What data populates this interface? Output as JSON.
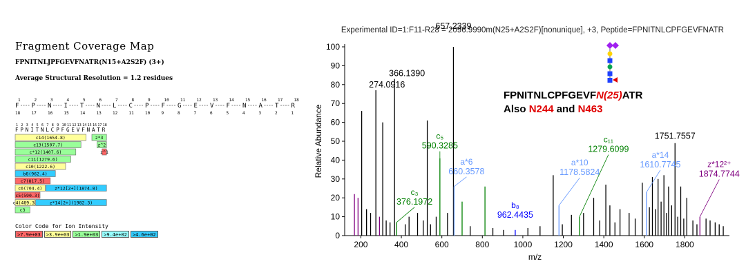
{
  "fragment_map": {
    "title": "Fragment Coverage Map",
    "peptide_line": "FPNITNLJPFGEVFNATR(N15+A2S2F) (3+)",
    "resolution_line": "Average Structural Resolution = 1.2 residues",
    "residues": [
      "F",
      "P",
      "N",
      "I",
      "T",
      "N",
      "L",
      "C",
      "P",
      "F",
      "G",
      "E",
      "V",
      "F",
      "N",
      "A",
      "T",
      "R"
    ],
    "numbers_top": [
      "1",
      "2",
      "3",
      "4",
      "5",
      "6",
      "7",
      "8",
      "9",
      "10",
      "11",
      "12",
      "13",
      "14",
      "15",
      "16",
      "17",
      "18"
    ],
    "numbers_bottom": [
      "18",
      "17",
      "16",
      "15",
      "14",
      "13",
      "12",
      "11",
      "10",
      "9",
      "8",
      "7",
      "6",
      "5",
      "4",
      "3",
      "2",
      "1"
    ],
    "ion_bars": [
      {
        "label": "c14(1654.8)",
        "start": 1,
        "end": 14,
        "row": 0,
        "color": "#ffff99"
      },
      {
        "label": "c13(1507.7)",
        "start": 1,
        "end": 13,
        "row": 1,
        "color": "#99ff99"
      },
      {
        "label": "c*12(1407.6)",
        "start": 1,
        "end": 12,
        "row": 2,
        "color": "#99ff99"
      },
      {
        "label": "c11(1279.6)",
        "start": 1,
        "end": 11,
        "row": 3,
        "color": "#99ff99"
      },
      {
        "label": "c10(1222.6)",
        "start": 1,
        "end": 10,
        "row": 4,
        "color": "#ffff99"
      },
      {
        "label": "b8(962.4)",
        "start": 1,
        "end": 8,
        "row": 5,
        "color": "#33ccff"
      },
      {
        "label": "c7(817.5)",
        "start": 1,
        "end": 7,
        "row": 6,
        "color": "#ff6666"
      },
      {
        "label": "c6(704.4)",
        "start": 1,
        "end": 6,
        "row": 7,
        "color": "#ffff99"
      },
      {
        "label": "c5(590.3)",
        "start": 1,
        "end": 5,
        "row": 8,
        "color": "#ff6666"
      },
      {
        "label": "c4(489.3)",
        "start": 1,
        "end": 4,
        "row": 9,
        "color": "#ffff99"
      },
      {
        "label": "c3",
        "start": 1,
        "end": 3,
        "row": 10,
        "color": "#99ff99"
      },
      {
        "label": "z*3",
        "start": 16,
        "end": 18,
        "row": 0,
        "color": "#99ff99"
      },
      {
        "label": "z^2",
        "start": 17,
        "end": 18,
        "row": 1,
        "color": "#99ff99"
      },
      {
        "label": "z^1",
        "start": 18,
        "end": 18,
        "row": 2,
        "color": "#ff6666"
      },
      {
        "label": "z*12[2+](1874.8)",
        "start": 7,
        "end": 18,
        "row": 7,
        "color": "#33ccff"
      },
      {
        "label": "z*14[2+](1982.3)",
        "start": 5,
        "end": 18,
        "row": 9,
        "color": "#33ccff"
      }
    ],
    "color_code_title": "Color Code for Ion Intensity",
    "color_code": [
      {
        "label": ">7.9e+03",
        "color": "#ff6666"
      },
      {
        "label": ">3.9e+03",
        "color": "#ffff99"
      },
      {
        "label": ">1.9e+03",
        "color": "#99ff99"
      },
      {
        "label": ">9.4e+02",
        "color": "#99ffff"
      },
      {
        "label": ">4.6e+02",
        "color": "#33ccff"
      }
    ]
  },
  "annotation": {
    "seq_prefix": "FPNITNLCPFGEVF",
    "seq_mod": "N(25)",
    "seq_suffix": "ATR",
    "also_prefix": "Also ",
    "also_n1": "N244",
    "also_mid": " and ",
    "also_n2": "N463"
  },
  "chart_data": {
    "type": "bar",
    "title": "Experimental ID=1:F11-R28 = 2096.9990m(N25+A2S2F)[nonunique], +3, Peptide=FPNITNLCPFGEVFNATR",
    "xlabel": "m/z",
    "ylabel": "Relative Abundance",
    "xlim": [
      120,
      2000
    ],
    "ylim": [
      0,
      100
    ],
    "xticks": [
      200,
      400,
      600,
      800,
      1000,
      1200,
      1400,
      1600,
      1800
    ],
    "yticks": [
      0,
      10,
      20,
      30,
      40,
      50,
      60,
      70,
      80,
      90,
      100
    ],
    "peaks": [
      {
        "mz": 657.2339,
        "intensity": 100,
        "color": "#000000"
      },
      {
        "mz": 366.139,
        "intensity": 83,
        "color": "#000000"
      },
      {
        "mz": 274.0916,
        "intensity": 77,
        "color": "#000000"
      },
      {
        "mz": 204.0,
        "intensity": 66,
        "color": "#000000"
      },
      {
        "mz": 308.0,
        "intensity": 60,
        "color": "#000000"
      },
      {
        "mz": 528.0,
        "intensity": 61,
        "color": "#000000"
      },
      {
        "mz": 590.3285,
        "intensity": 41,
        "color": "#008000"
      },
      {
        "mz": 376.1972,
        "intensity": 7,
        "color": "#008000"
      },
      {
        "mz": 660.3578,
        "intensity": 26,
        "color": "#6699ff"
      },
      {
        "mz": 813.0,
        "intensity": 26,
        "color": "#008000"
      },
      {
        "mz": 962.4435,
        "intensity": 3,
        "color": "#0000ff"
      },
      {
        "mz": 1178.5824,
        "intensity": 16,
        "color": "#6699ff"
      },
      {
        "mz": 1279.6099,
        "intensity": 10,
        "color": "#008000"
      },
      {
        "mz": 1610.7745,
        "intensity": 23,
        "color": "#6699ff"
      },
      {
        "mz": 1751.7557,
        "intensity": 49,
        "color": "#000000"
      },
      {
        "mz": 1874.7744,
        "intensity": 10,
        "color": "#800080"
      },
      {
        "mz": 1697.0,
        "intensity": 32,
        "color": "#000000"
      },
      {
        "mz": 1640.0,
        "intensity": 31,
        "color": "#000000"
      },
      {
        "mz": 1668.0,
        "intensity": 30,
        "color": "#000000"
      },
      {
        "mz": 1150.0,
        "intensity": 32,
        "color": "#000000"
      },
      {
        "mz": 1410.0,
        "intensity": 27,
        "color": "#000000"
      },
      {
        "mz": 1590.0,
        "intensity": 28,
        "color": "#000000"
      },
      {
        "mz": 1720.0,
        "intensity": 26,
        "color": "#000000"
      },
      {
        "mz": 1780.0,
        "intensity": 26,
        "color": "#000000"
      },
      {
        "mz": 1810.0,
        "intensity": 20,
        "color": "#000000"
      },
      {
        "mz": 1350.0,
        "intensity": 20,
        "color": "#000000"
      },
      {
        "mz": 1430.0,
        "intensity": 16,
        "color": "#000000"
      },
      {
        "mz": 1480.0,
        "intensity": 14,
        "color": "#000000"
      },
      {
        "mz": 1525.0,
        "intensity": 12,
        "color": "#000000"
      },
      {
        "mz": 1300.0,
        "intensity": 12,
        "color": "#000000"
      },
      {
        "mz": 1240.0,
        "intensity": 11,
        "color": "#000000"
      },
      {
        "mz": 700.0,
        "intensity": 18,
        "color": "#008000"
      },
      {
        "mz": 628.0,
        "intensity": 12,
        "color": "#000000"
      },
      {
        "mz": 572.0,
        "intensity": 10,
        "color": "#000000"
      },
      {
        "mz": 480.0,
        "intensity": 12,
        "color": "#000000"
      },
      {
        "mz": 438.0,
        "intensity": 10,
        "color": "#000000"
      },
      {
        "mz": 168.0,
        "intensity": 22,
        "color": "#800080"
      },
      {
        "mz": 186.0,
        "intensity": 20,
        "color": "#800080"
      },
      {
        "mz": 228.0,
        "intensity": 14,
        "color": "#000000"
      },
      {
        "mz": 248.0,
        "intensity": 12,
        "color": "#000000"
      },
      {
        "mz": 292.0,
        "intensity": 10,
        "color": "#800080"
      },
      {
        "mz": 325.0,
        "intensity": 8,
        "color": "#000000"
      },
      {
        "mz": 344.0,
        "intensity": 7,
        "color": "#000000"
      },
      {
        "mz": 419.0,
        "intensity": 6,
        "color": "#000000"
      },
      {
        "mz": 508.0,
        "intensity": 8,
        "color": "#000000"
      },
      {
        "mz": 544.0,
        "intensity": 6,
        "color": "#000000"
      },
      {
        "mz": 740.0,
        "intensity": 5,
        "color": "#000000"
      },
      {
        "mz": 852.0,
        "intensity": 4,
        "color": "#000000"
      },
      {
        "mz": 905.0,
        "intensity": 3,
        "color": "#000000"
      },
      {
        "mz": 1025.0,
        "intensity": 4,
        "color": "#000000"
      },
      {
        "mz": 1085.0,
        "intensity": 5,
        "color": "#000000"
      },
      {
        "mz": 1195.0,
        "intensity": 6,
        "color": "#000000"
      },
      {
        "mz": 1380.0,
        "intensity": 8,
        "color": "#000000"
      },
      {
        "mz": 1455.0,
        "intensity": 7,
        "color": "#000000"
      },
      {
        "mz": 1555.0,
        "intensity": 9,
        "color": "#000000"
      },
      {
        "mz": 1625.0,
        "intensity": 15,
        "color": "#000000"
      },
      {
        "mz": 1655.0,
        "intensity": 14,
        "color": "#000000"
      },
      {
        "mz": 1683.0,
        "intensity": 18,
        "color": "#000000"
      },
      {
        "mz": 1710.0,
        "intensity": 12,
        "color": "#000000"
      },
      {
        "mz": 1735.0,
        "intensity": 16,
        "color": "#000000"
      },
      {
        "mz": 1765.0,
        "intensity": 10,
        "color": "#000000"
      },
      {
        "mz": 1795.0,
        "intensity": 9,
        "color": "#000000"
      },
      {
        "mz": 1840.0,
        "intensity": 8,
        "color": "#000000"
      },
      {
        "mz": 1860.0,
        "intensity": 6,
        "color": "#000000"
      },
      {
        "mz": 1905.0,
        "intensity": 9,
        "color": "#000000"
      },
      {
        "mz": 1925.0,
        "intensity": 8,
        "color": "#000000"
      },
      {
        "mz": 1950.0,
        "intensity": 7,
        "color": "#000000"
      },
      {
        "mz": 1970.0,
        "intensity": 6,
        "color": "#000000"
      },
      {
        "mz": 1990.0,
        "intensity": 5,
        "color": "#000000"
      }
    ],
    "peak_labels": [
      {
        "mz": 657.2339,
        "intensity": 100,
        "ion": "",
        "value": "657.2339",
        "color": "#000000"
      },
      {
        "mz": 366.139,
        "intensity": 83,
        "ion": "",
        "value": "366.1390",
        "color": "#000000"
      },
      {
        "mz": 274.0916,
        "intensity": 77,
        "ion": "",
        "value": "274.0916",
        "color": "#000000"
      },
      {
        "mz": 1751.7557,
        "intensity": 49,
        "ion": "",
        "value": "1751.7557",
        "color": "#000000"
      },
      {
        "mz": 590.3285,
        "intensity": 41,
        "ion": "c₅",
        "value": "590.3285",
        "color": "#008000"
      },
      {
        "mz": 1279.6099,
        "intensity": 10,
        "ion": "c₁₁",
        "value": "1279.6099",
        "color": "#008000"
      },
      {
        "mz": 660.3578,
        "intensity": 26,
        "ion": "a*6",
        "value": "660.3578",
        "color": "#6699ff"
      },
      {
        "mz": 1178.5824,
        "intensity": 16,
        "ion": "a*10",
        "value": "1178.5824",
        "color": "#6699ff"
      },
      {
        "mz": 1610.7745,
        "intensity": 23,
        "ion": "a*14",
        "value": "1610.7745",
        "color": "#6699ff"
      },
      {
        "mz": 1874.7744,
        "intensity": 10,
        "ion": "z*12²⁺",
        "value": "1874.7744",
        "color": "#800080"
      },
      {
        "mz": 376.1972,
        "intensity": 7,
        "ion": "c₃",
        "value": "376.1972",
        "color": "#008000"
      },
      {
        "mz": 962.4435,
        "intensity": 3,
        "ion": "b₈",
        "value": "962.4435",
        "color": "#0000ff"
      }
    ]
  }
}
